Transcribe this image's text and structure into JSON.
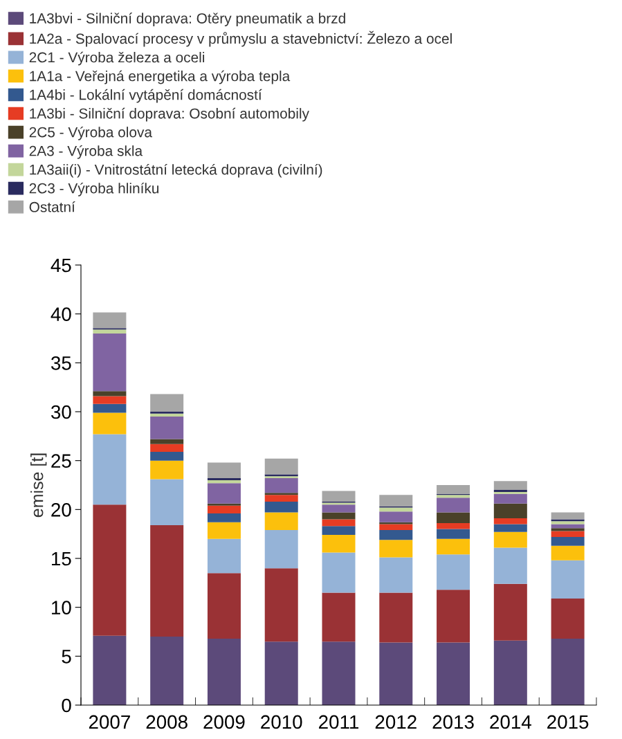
{
  "chart_data": {
    "type": "bar",
    "stacked": true,
    "ylabel": "emise [t]",
    "categories": [
      "2007",
      "2008",
      "2009",
      "2010",
      "2011",
      "2012",
      "2013",
      "2014",
      "2015"
    ],
    "ylim": [
      0,
      45
    ],
    "yticks": [
      0,
      5,
      10,
      15,
      20,
      25,
      30,
      35,
      40,
      45
    ],
    "grid": false,
    "legend": "top",
    "series": [
      {
        "name": "1A3bvi - Silniční doprava: Otěry pneumatik a brzd",
        "color": "#5c4a7a",
        "values": [
          7.1,
          7.0,
          6.8,
          6.5,
          6.5,
          6.4,
          6.4,
          6.6,
          6.8
        ]
      },
      {
        "name": "1A2a - Spalovací procesy v průmyslu a stavebnictví: Železo a ocel",
        "color": "#9a3235",
        "values": [
          13.4,
          11.4,
          6.7,
          7.5,
          5.0,
          5.1,
          5.4,
          5.8,
          4.1
        ]
      },
      {
        "name": "2C1 - Výroba železa a oceli",
        "color": "#95b3d7",
        "values": [
          7.2,
          4.7,
          3.5,
          3.9,
          4.1,
          3.6,
          3.6,
          3.7,
          3.9
        ]
      },
      {
        "name": "1A1a - Veřejná energetika a výroba tepla",
        "color": "#fcc00c",
        "values": [
          2.2,
          1.9,
          1.7,
          1.8,
          1.8,
          1.8,
          1.6,
          1.6,
          1.5
        ]
      },
      {
        "name": "1A4bi - Lokální vytápění domácností",
        "color": "#33598f",
        "values": [
          0.9,
          0.9,
          0.9,
          1.1,
          0.9,
          1.0,
          1.0,
          0.8,
          0.9
        ]
      },
      {
        "name": "1A3bi - Silniční doprava: Osobní automobily",
        "color": "#e63c23",
        "values": [
          0.8,
          0.8,
          0.8,
          0.7,
          0.7,
          0.6,
          0.6,
          0.6,
          0.6
        ]
      },
      {
        "name": "2C5 - Výroba olova",
        "color": "#4a4129",
        "values": [
          0.5,
          0.5,
          0.2,
          0.2,
          0.7,
          0.2,
          1.1,
          1.5,
          0.3
        ]
      },
      {
        "name": "2A3 - Výroba skla",
        "color": "#8064a2",
        "values": [
          5.9,
          2.3,
          2.1,
          1.5,
          0.8,
          1.1,
          1.5,
          1.0,
          0.4
        ]
      },
      {
        "name": "1A3aii(i) - Vnitrostátní letecká doprava (civilní)",
        "color": "#c3d69b",
        "values": [
          0.4,
          0.3,
          0.3,
          0.2,
          0.2,
          0.4,
          0.3,
          0.2,
          0.3
        ]
      },
      {
        "name": "2C3 - Výroba hliníku",
        "color": "#2a2b5f",
        "values": [
          0.15,
          0.2,
          0.2,
          0.2,
          0.1,
          0.1,
          0.1,
          0.2,
          0.2
        ]
      },
      {
        "name": "Ostatní",
        "color": "#a6a6a6",
        "values": [
          1.6,
          1.8,
          1.6,
          1.6,
          1.1,
          1.2,
          0.9,
          0.9,
          0.7
        ]
      }
    ]
  }
}
